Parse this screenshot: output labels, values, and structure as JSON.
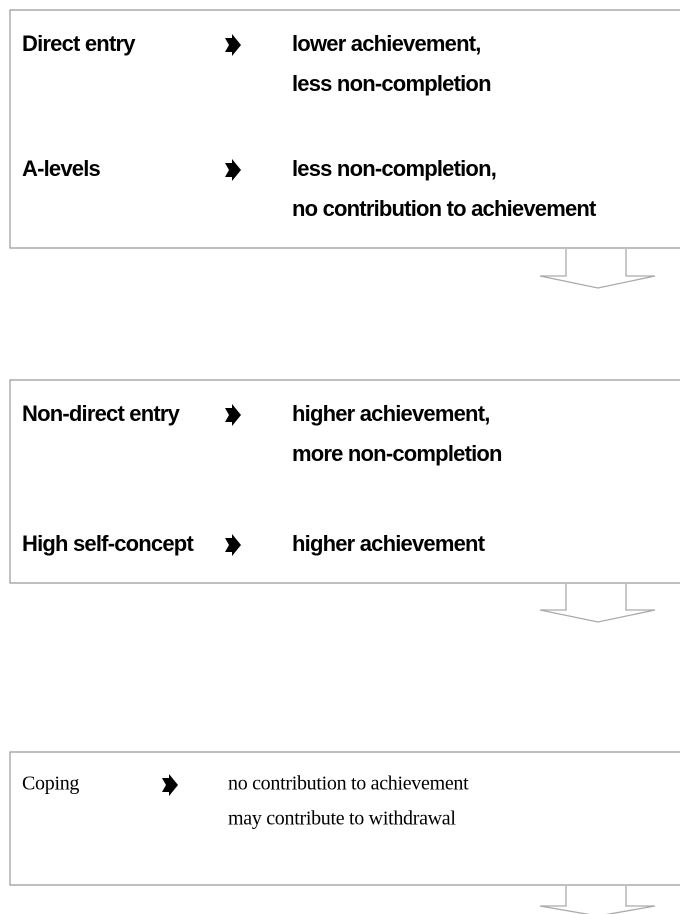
{
  "boxes": [
    {
      "rows": [
        {
          "label": "Direct entry",
          "outcome": [
            "lower achievement,",
            "less non-completion"
          ]
        },
        {
          "label": "A-levels",
          "outcome": [
            "less non-completion,",
            "no contribution to achievement"
          ]
        }
      ]
    },
    {
      "rows": [
        {
          "label": "Non-direct entry",
          "outcome": [
            "higher achievement,",
            "more non-completion"
          ]
        },
        {
          "label": "High self-concept",
          "outcome": [
            "higher achievement"
          ]
        }
      ]
    },
    {
      "rows": [
        {
          "label": "Coping",
          "outcome": [
            "no contribution  to achievement",
            "may contribute to withdrawal"
          ]
        }
      ]
    }
  ]
}
